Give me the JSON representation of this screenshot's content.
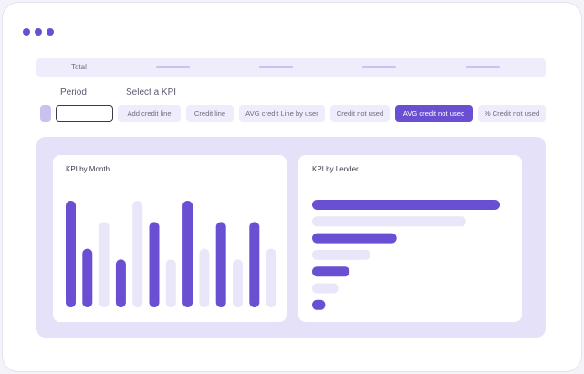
{
  "header": {
    "total_label": "Total"
  },
  "filters": {
    "period_label": "Period",
    "period_value": "",
    "kpi_label": "Select a KPI",
    "kpis": [
      {
        "label": "Add credit line",
        "active": false
      },
      {
        "label": "Credit line",
        "active": false
      },
      {
        "label": "AVG credit Line by user",
        "active": false
      },
      {
        "label": "Credit not used",
        "active": false
      },
      {
        "label": "AVG credit not used",
        "active": true
      },
      {
        "label": "% Credit not used",
        "active": false
      }
    ]
  },
  "colors": {
    "accent": "#6a4fd3",
    "accent_light": "#e9e6fa"
  },
  "chart_data": [
    {
      "type": "bar",
      "title": "KPI by Month",
      "categories": [
        "",
        "",
        "",
        "",
        "",
        "",
        "",
        "",
        "",
        "",
        "",
        "",
        ""
      ],
      "series": [
        {
          "values": [
            1.0,
            0.55,
            0,
            0.45,
            0,
            0.8,
            0,
            1.0,
            0,
            0.8,
            0,
            0.8,
            0
          ]
        },
        {
          "values": [
            0,
            0,
            0.8,
            0,
            1.0,
            0,
            0.45,
            0,
            0.55,
            0,
            0.45,
            0,
            0.55
          ]
        }
      ],
      "ylim": [
        0,
        1
      ]
    },
    {
      "type": "bar",
      "orientation": "horizontal",
      "title": "KPI by Lender",
      "categories": [
        "",
        "",
        "",
        "",
        "",
        "",
        ""
      ],
      "values": [
        1.0,
        0.82,
        0.45,
        0.31,
        0.2,
        0.14,
        0.07
      ],
      "highlight": [
        true,
        false,
        true,
        false,
        true,
        false,
        true
      ],
      "xlim": [
        0,
        1
      ]
    }
  ]
}
